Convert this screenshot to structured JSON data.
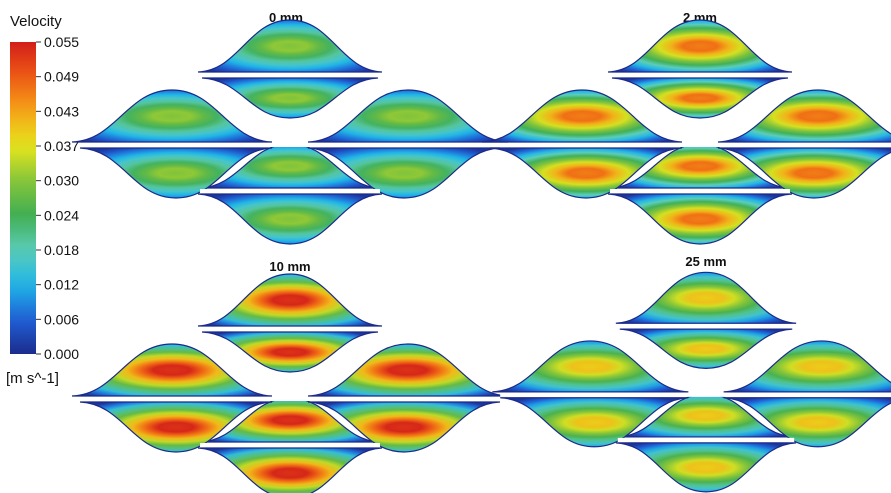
{
  "legend": {
    "title": "Velocity",
    "unit": "[m s^-1]",
    "ticks": [
      "0.055",
      "0.049",
      "0.043",
      "0.037",
      "0.030",
      "0.024",
      "0.018",
      "0.012",
      "0.006",
      "0.000"
    ],
    "colors": [
      "#1c2c8c",
      "#1f5fd6",
      "#1fb6e8",
      "#5ccdb8",
      "#3fae52",
      "#86c53a",
      "#e6e61c",
      "#f5a418",
      "#ee5a14",
      "#d21e1a"
    ]
  },
  "panels": [
    {
      "label": "0 mm",
      "peak_velocity": 0.03
    },
    {
      "label": "2 mm",
      "peak_velocity": 0.046
    },
    {
      "label": "10 mm",
      "peak_velocity": 0.053
    },
    {
      "label": "25 mm",
      "peak_velocity": 0.039
    }
  ]
}
